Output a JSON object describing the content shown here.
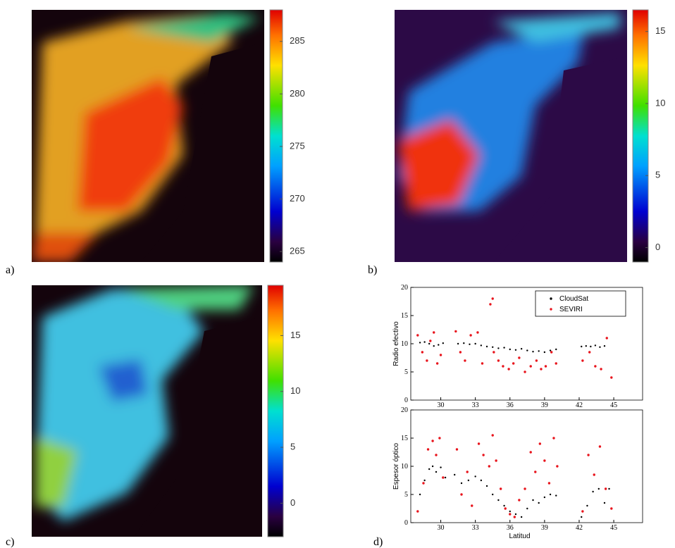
{
  "panel_labels": [
    "a)",
    "b)",
    "c)",
    "d)"
  ],
  "colorbars": [
    {
      "lim": [
        264,
        288
      ],
      "ticks": [
        265,
        270,
        275,
        280,
        285
      ]
    },
    {
      "lim": [
        -1,
        16.5
      ],
      "ticks": [
        0,
        5,
        10,
        15
      ]
    },
    {
      "lim": [
        -3,
        19.5
      ],
      "ticks": [
        0,
        5,
        10,
        15
      ]
    }
  ],
  "chart_data": [
    {
      "type": "scatter",
      "y_label": "Radio efectivo",
      "xlim": [
        27.4,
        47.5
      ],
      "xticks": [
        30,
        33,
        36,
        39,
        42,
        45
      ],
      "ylim": [
        0,
        20
      ],
      "yticks": [
        0,
        5,
        10,
        15,
        20
      ],
      "legend": "upper-right",
      "series": [
        {
          "name": "CloudSat",
          "color": "#000000",
          "x": [
            28.2,
            28.6,
            29.0,
            29.4,
            29.8,
            30.2,
            31.5,
            32.0,
            32.5,
            33.0,
            33.5,
            34.0,
            34.5,
            35.0,
            35.5,
            36.0,
            36.5,
            37.0,
            37.5,
            38.0,
            38.5,
            39.0,
            39.5,
            40.0,
            42.2,
            42.6,
            43.0,
            43.4,
            43.8,
            44.2
          ],
          "values": [
            10.2,
            10.3,
            10.0,
            9.6,
            9.8,
            10.1,
            10.0,
            10.1,
            9.9,
            10.0,
            9.7,
            9.5,
            9.4,
            9.2,
            9.3,
            9.0,
            8.9,
            9.1,
            8.8,
            8.6,
            8.7,
            8.5,
            8.8,
            9.0,
            9.5,
            9.6,
            9.5,
            9.7,
            9.4,
            9.6
          ]
        },
        {
          "name": "SEVIRI",
          "color": "#e8141c",
          "x": [
            28.0,
            28.4,
            28.8,
            29.1,
            29.4,
            29.7,
            30.0,
            31.3,
            31.7,
            32.1,
            32.6,
            33.2,
            33.6,
            34.3,
            34.5,
            34.6,
            35.0,
            35.4,
            35.9,
            36.3,
            36.8,
            37.3,
            37.8,
            38.3,
            38.7,
            39.1,
            39.6,
            40.0,
            42.3,
            42.9,
            43.4,
            43.9,
            44.4,
            44.8
          ],
          "values": [
            11.5,
            8.5,
            7.0,
            10.5,
            12.0,
            6.5,
            8.0,
            12.2,
            8.5,
            7.0,
            11.5,
            12.0,
            6.5,
            17.0,
            18.0,
            8.5,
            7.0,
            6.0,
            5.5,
            6.5,
            7.5,
            5.0,
            6.0,
            7.0,
            5.5,
            6.0,
            8.5,
            6.5,
            7.0,
            8.5,
            6.0,
            5.5,
            11.0,
            4.0
          ]
        }
      ]
    },
    {
      "type": "scatter",
      "y_label": "Espesor óptico",
      "x_label": "Latitud",
      "xlim": [
        27.4,
        47.5
      ],
      "xticks": [
        30,
        33,
        36,
        39,
        42,
        45
      ],
      "ylim": [
        0,
        20
      ],
      "yticks": [
        0,
        5,
        10,
        15,
        20
      ],
      "series": [
        {
          "name": "CloudSat",
          "color": "#000000",
          "x": [
            28.2,
            28.6,
            29.0,
            29.3,
            29.6,
            30.0,
            30.4,
            31.2,
            31.8,
            32.4,
            33.0,
            33.5,
            34.0,
            34.5,
            35.0,
            35.5,
            36.0,
            36.5,
            37.0,
            37.5,
            38.0,
            38.5,
            39.0,
            39.5,
            40.0,
            42.2,
            42.7,
            43.2,
            43.7,
            44.2,
            44.6
          ],
          "values": [
            5.0,
            7.5,
            9.5,
            10.0,
            9.0,
            9.8,
            8.0,
            8.5,
            7.0,
            7.5,
            8.2,
            7.5,
            6.5,
            5.0,
            4.0,
            3.0,
            2.0,
            1.5,
            1.0,
            2.5,
            4.0,
            3.5,
            4.5,
            5.0,
            4.8,
            1.0,
            3.0,
            5.5,
            6.0,
            3.5,
            6.0
          ]
        },
        {
          "name": "SEVIRI",
          "color": "#e8141c",
          "x": [
            28.0,
            28.5,
            28.9,
            29.3,
            29.6,
            29.9,
            30.2,
            31.4,
            31.8,
            32.3,
            32.7,
            33.3,
            33.7,
            34.2,
            34.5,
            34.8,
            35.2,
            35.6,
            36.0,
            36.4,
            36.8,
            37.3,
            37.8,
            38.2,
            38.6,
            39.0,
            39.4,
            39.8,
            40.1,
            42.3,
            42.8,
            43.3,
            43.8,
            44.3,
            44.8
          ],
          "values": [
            2.0,
            7.0,
            13.0,
            14.5,
            12.0,
            15.0,
            8.0,
            13.0,
            5.0,
            9.0,
            3.0,
            14.0,
            12.0,
            10.0,
            15.5,
            11.0,
            6.0,
            2.5,
            1.5,
            1.0,
            4.0,
            6.0,
            12.5,
            9.0,
            14.0,
            11.0,
            7.0,
            15.0,
            10.0,
            2.0,
            12.0,
            8.5,
            13.5,
            6.0,
            2.5
          ]
        }
      ]
    }
  ]
}
